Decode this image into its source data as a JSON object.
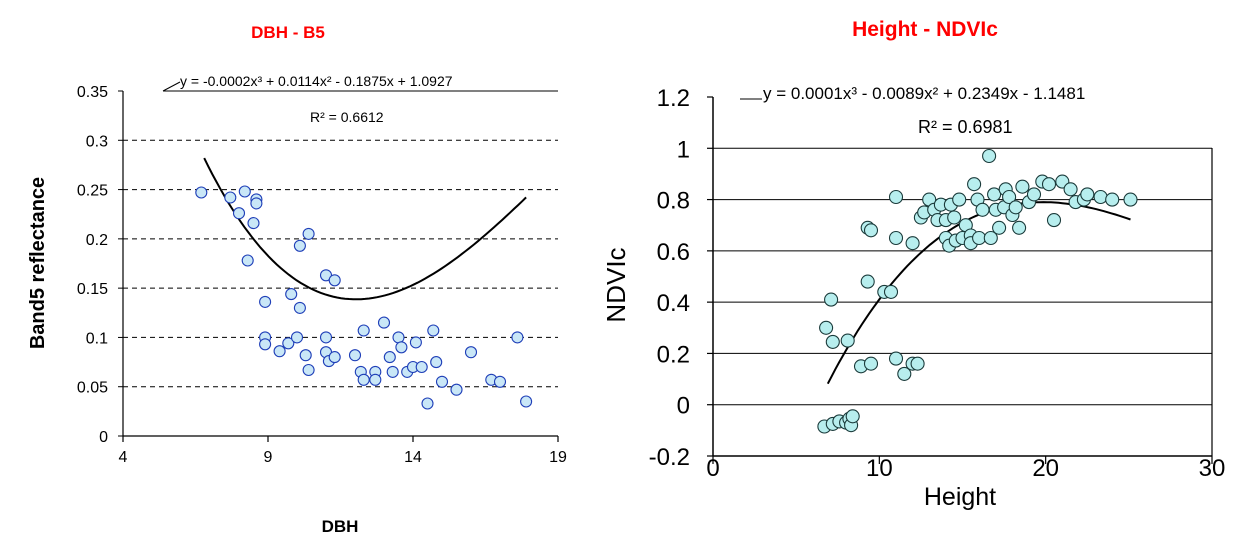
{
  "chart_data": [
    {
      "type": "scatter",
      "title": "DBH - B5",
      "xlabel": "DBH",
      "ylabel": "Band5 reflectance",
      "xlim": [
        4,
        19
      ],
      "ylim": [
        0,
        0.35
      ],
      "xticks": [
        "4",
        "9",
        "14",
        "19"
      ],
      "yticks": [
        "0",
        "0.05",
        "0.1",
        "0.15",
        "0.2",
        "0.25",
        "0.3",
        "0.35"
      ],
      "grid": "horizontal dashed",
      "title_color": "#ff0000",
      "point_fill": "#c9e7f7",
      "point_stroke": "#1f3fb8",
      "equation": "y = -0.0002x³ + 0.0114x² - 0.1875x + 1.0927",
      "r2_text": "R² = 0.6612",
      "trendline": {
        "coeffs": [
          -0.0002,
          0.0114,
          -0.1875,
          1.0927
        ],
        "x_range": [
          6.8,
          17.9
        ]
      },
      "series": [
        {
          "points": [
            [
              6.7,
              0.247
            ],
            [
              7.7,
              0.242
            ],
            [
              8.0,
              0.226
            ],
            [
              8.2,
              0.248
            ],
            [
              8.6,
              0.24
            ],
            [
              8.6,
              0.236
            ],
            [
              8.5,
              0.216
            ],
            [
              8.3,
              0.178
            ],
            [
              8.9,
              0.136
            ],
            [
              8.9,
              0.1
            ],
            [
              8.9,
              0.093
            ],
            [
              9.4,
              0.086
            ],
            [
              9.7,
              0.094
            ],
            [
              9.8,
              0.144
            ],
            [
              10.1,
              0.13
            ],
            [
              10.1,
              0.193
            ],
            [
              10.4,
              0.205
            ],
            [
              10.0,
              0.1
            ],
            [
              10.3,
              0.082
            ],
            [
              10.4,
              0.067
            ],
            [
              11.0,
              0.163
            ],
            [
              11.3,
              0.158
            ],
            [
              11.0,
              0.085
            ],
            [
              11.1,
              0.076
            ],
            [
              11.3,
              0.08
            ],
            [
              11.0,
              0.1
            ],
            [
              12.0,
              0.082
            ],
            [
              12.2,
              0.065
            ],
            [
              12.3,
              0.057
            ],
            [
              12.3,
              0.107
            ],
            [
              12.7,
              0.065
            ],
            [
              12.7,
              0.057
            ],
            [
              13.0,
              0.115
            ],
            [
              13.2,
              0.08
            ],
            [
              13.3,
              0.065
            ],
            [
              13.5,
              0.1
            ],
            [
              13.6,
              0.09
            ],
            [
              13.8,
              0.065
            ],
            [
              14.0,
              0.07
            ],
            [
              14.1,
              0.095
            ],
            [
              14.3,
              0.07
            ],
            [
              14.5,
              0.033
            ],
            [
              14.7,
              0.107
            ],
            [
              14.8,
              0.075
            ],
            [
              15.0,
              0.055
            ],
            [
              15.5,
              0.047
            ],
            [
              16.0,
              0.085
            ],
            [
              16.7,
              0.057
            ],
            [
              17.0,
              0.055
            ],
            [
              17.6,
              0.1
            ],
            [
              17.9,
              0.035
            ]
          ]
        }
      ]
    },
    {
      "type": "scatter",
      "title": "Height - NDVIc",
      "xlabel": "Height",
      "ylabel": "NDVIc",
      "xlim": [
        0,
        30
      ],
      "ylim": [
        -0.2,
        1.2
      ],
      "xticks": [
        "0",
        "10",
        "20",
        "30"
      ],
      "yticks": [
        "-0.2",
        "0",
        "0.2",
        "0.4",
        "0.6",
        "0.8",
        "1",
        "1.2"
      ],
      "grid": "horizontal solid",
      "title_color": "#ff0000",
      "point_fill": "#b7eeee",
      "point_stroke": "#1a3a3a",
      "equation": "y = 0.0001x³ - 0.0089x² + 0.2349x - 1.1481",
      "r2_text": "R² = 0.6981",
      "trendline": {
        "coeffs": [
          0.0001,
          -0.0089,
          0.2349,
          -1.1481
        ],
        "x_range": [
          6.9,
          25.1
        ]
      },
      "series": [
        {
          "points": [
            [
              6.7,
              -0.085
            ],
            [
              7.2,
              -0.075
            ],
            [
              7.6,
              -0.065
            ],
            [
              8.0,
              -0.07
            ],
            [
              8.2,
              -0.055
            ],
            [
              8.3,
              -0.08
            ],
            [
              8.4,
              -0.045
            ],
            [
              6.8,
              0.3
            ],
            [
              7.1,
              0.41
            ],
            [
              7.2,
              0.245
            ],
            [
              8.1,
              0.25
            ],
            [
              8.9,
              0.15
            ],
            [
              9.5,
              0.16
            ],
            [
              9.3,
              0.48
            ],
            [
              9.3,
              0.69
            ],
            [
              9.5,
              0.68
            ],
            [
              10.3,
              0.44
            ],
            [
              10.7,
              0.44
            ],
            [
              11.0,
              0.18
            ],
            [
              11.5,
              0.12
            ],
            [
              12.0,
              0.16
            ],
            [
              12.3,
              0.16
            ],
            [
              11.0,
              0.81
            ],
            [
              11.0,
              0.65
            ],
            [
              12.0,
              0.63
            ],
            [
              12.5,
              0.73
            ],
            [
              12.7,
              0.75
            ],
            [
              13.0,
              0.8
            ],
            [
              13.3,
              0.76
            ],
            [
              13.5,
              0.72
            ],
            [
              13.7,
              0.78
            ],
            [
              14.0,
              0.72
            ],
            [
              14.0,
              0.65
            ],
            [
              14.2,
              0.62
            ],
            [
              14.3,
              0.78
            ],
            [
              14.5,
              0.73
            ],
            [
              14.6,
              0.64
            ],
            [
              14.8,
              0.8
            ],
            [
              15.0,
              0.65
            ],
            [
              15.2,
              0.7
            ],
            [
              15.5,
              0.66
            ],
            [
              15.5,
              0.63
            ],
            [
              15.7,
              0.86
            ],
            [
              15.9,
              0.8
            ],
            [
              16.0,
              0.65
            ],
            [
              16.2,
              0.76
            ],
            [
              16.6,
              0.97
            ],
            [
              16.7,
              0.65
            ],
            [
              16.9,
              0.82
            ],
            [
              17.0,
              0.76
            ],
            [
              17.2,
              0.69
            ],
            [
              17.5,
              0.77
            ],
            [
              17.6,
              0.84
            ],
            [
              17.8,
              0.81
            ],
            [
              18.0,
              0.74
            ],
            [
              18.2,
              0.77
            ],
            [
              18.4,
              0.69
            ],
            [
              18.6,
              0.85
            ],
            [
              19.0,
              0.79
            ],
            [
              19.3,
              0.82
            ],
            [
              19.8,
              0.87
            ],
            [
              20.2,
              0.86
            ],
            [
              20.5,
              0.72
            ],
            [
              21.0,
              0.87
            ],
            [
              21.5,
              0.84
            ],
            [
              21.8,
              0.79
            ],
            [
              22.3,
              0.8
            ],
            [
              22.5,
              0.82
            ],
            [
              23.3,
              0.81
            ],
            [
              24.0,
              0.8
            ],
            [
              25.1,
              0.8
            ]
          ]
        }
      ]
    }
  ]
}
